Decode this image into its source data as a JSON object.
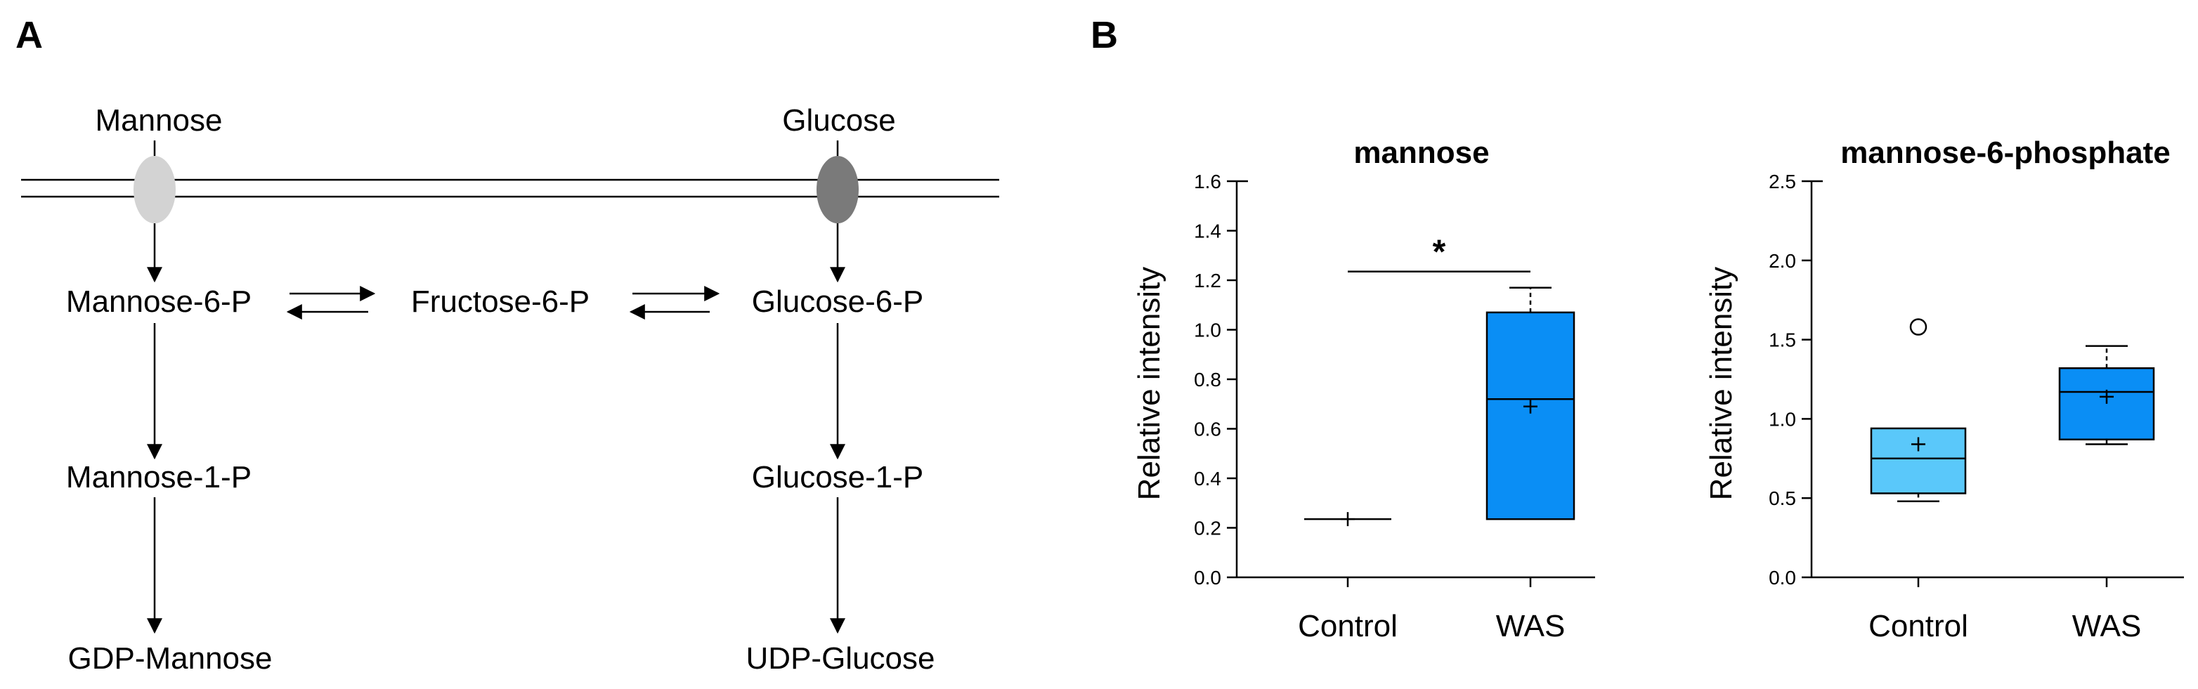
{
  "panels": {
    "a": "A",
    "b": "B"
  },
  "pathway": {
    "mannose": "Mannose",
    "glucose": "Glucose",
    "mannose6p": "Mannose-6-P",
    "fructose6p": "Fructose-6-P",
    "glucose6p": "Glucose-6-P",
    "mannose1p": "Mannose-1-P",
    "glucose1p": "Glucose-1-P",
    "gdp_mannose": "GDP-Mannose",
    "udp_glucose": "UDP-Glucose",
    "colors": {
      "mannose_transporter": "#d3d3d3",
      "glucose_transporter": "#7a7a7a"
    }
  },
  "chart_data": [
    {
      "type": "boxplot",
      "title": "mannose",
      "ylabel": "Relative intensity",
      "ylim": [
        0,
        1.6
      ],
      "yticks": [
        "0.0",
        "0.2",
        "0.4",
        "0.6",
        "0.8",
        "1.0",
        "1.2",
        "1.4",
        "1.6"
      ],
      "tick_values": [
        0,
        0.2,
        0.4,
        0.6,
        0.8,
        1.0,
        1.2,
        1.4,
        1.6
      ],
      "categories": [
        "Control",
        "WAS"
      ],
      "boxes": [
        {
          "name": "Control",
          "min": 0.235,
          "q1": 0.235,
          "median": 0.235,
          "q3": 0.235,
          "max": 0.235,
          "mean": 0.235,
          "outliers": [],
          "color": "#5ac8fa"
        },
        {
          "name": "WAS",
          "min": 0.235,
          "q1": 0.235,
          "median": 0.72,
          "q3": 1.07,
          "max": 1.17,
          "mean": 0.69,
          "outliers": [],
          "color": "#0a8ef5"
        }
      ],
      "significance": {
        "label": "*",
        "y": 1.235
      }
    },
    {
      "type": "boxplot",
      "title": "mannose-6-phosphate",
      "ylabel": "Relative intensity",
      "ylim": [
        0,
        2.5
      ],
      "yticks": [
        "0.0",
        "0.5",
        "1.0",
        "1.5",
        "2.0",
        "2.5"
      ],
      "tick_values": [
        0,
        0.5,
        1.0,
        1.5,
        2.0,
        2.5
      ],
      "categories": [
        "Control",
        "WAS"
      ],
      "boxes": [
        {
          "name": "Control",
          "min": 0.48,
          "q1": 0.53,
          "median": 0.75,
          "q3": 0.94,
          "max": 0.94,
          "mean": 0.84,
          "outliers": [
            1.58
          ],
          "color": "#5ac8fa"
        },
        {
          "name": "WAS",
          "min": 0.84,
          "q1": 0.87,
          "median": 1.17,
          "q3": 1.32,
          "max": 1.46,
          "mean": 1.14,
          "outliers": [],
          "color": "#0a8ef5"
        }
      ]
    }
  ]
}
